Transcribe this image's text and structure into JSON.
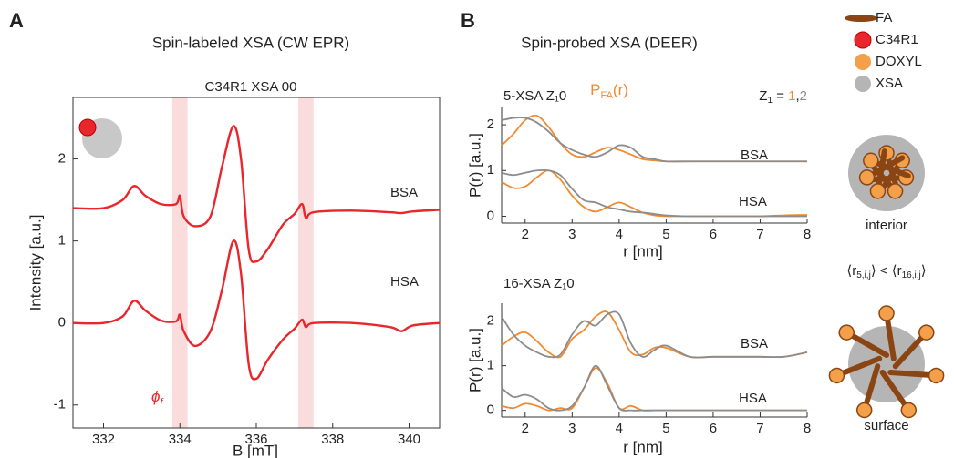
{
  "panel_a": {
    "letter": "A",
    "title": "Spin-labeled XSA (CW EPR)"
  },
  "panel_b": {
    "letter": "B",
    "title": "Spin-probed XSA (DEER)",
    "pfa": {
      "base": "P",
      "sub": "FA",
      "tail": "(r)",
      "color": "#f08a30"
    },
    "z1": {
      "base": "Z",
      "sub": "1",
      "eq": " = ",
      "one": "1",
      "comma": ",",
      "two": "2"
    },
    "legend": [
      {
        "label": "FA",
        "color": "#8b4513"
      },
      {
        "label": "C34R1",
        "color": "#e8262b"
      },
      {
        "label": "DOXYL",
        "color": "#f4a04a"
      },
      {
        "label": "XSA",
        "color": "#b5b5b5"
      }
    ],
    "interior": "interior",
    "surface": "surface",
    "comparison": [
      "⟨r",
      "5,i,j",
      "⟩ < ⟨r",
      "16,i,j",
      "⟩"
    ]
  },
  "chart_data": [
    {
      "type": "line",
      "title": "C34R1 XSA 00",
      "xlabel": "B [mT]",
      "ylabel": "Intensity [a.u.]",
      "xlim": [
        331.2,
        340.8
      ],
      "ylim": [
        -1.28,
        2.75
      ],
      "xticks": [
        332,
        334,
        336,
        338,
        340
      ],
      "yticks": [
        -1,
        0,
        1,
        2
      ],
      "bands": [
        [
          333.8,
          334.2
        ],
        [
          337.1,
          337.5
        ]
      ],
      "band_color": "#fbdcdc",
      "x": [
        331.2,
        332,
        332.5,
        332.8,
        333.1,
        333.5,
        333.9,
        334.0,
        334.1,
        334.4,
        334.8,
        335.1,
        335.4,
        335.6,
        335.8,
        336.0,
        336.3,
        336.7,
        337.0,
        337.2,
        337.3,
        337.5,
        338.5,
        339.5,
        339.8,
        340.1,
        340.8
      ],
      "series": [
        {
          "color": "#e8262b",
          "values": [
            1.4,
            1.4,
            1.5,
            1.67,
            1.55,
            1.45,
            1.45,
            1.55,
            1.3,
            1.18,
            1.3,
            1.9,
            2.4,
            2.0,
            0.9,
            0.75,
            0.9,
            1.2,
            1.33,
            1.45,
            1.28,
            1.35,
            1.37,
            1.35,
            1.34,
            1.36,
            1.38
          ]
        },
        {
          "color": "#e8262b",
          "values": [
            0,
            0,
            0.08,
            0.27,
            0.15,
            0.03,
            0.02,
            0.1,
            -0.1,
            -0.28,
            -0.1,
            0.4,
            1.0,
            0.6,
            -0.5,
            -0.68,
            -0.45,
            -0.2,
            -0.07,
            0.04,
            -0.05,
            0,
            0,
            -0.05,
            -0.1,
            -0.03,
            0
          ]
        }
      ],
      "annotations": [
        "BSA",
        "HSA"
      ],
      "phi": {
        "base": "ϕ",
        "sub": "f"
      }
    },
    {
      "type": "line",
      "title": "5-XSA Z₁0",
      "xlabel": "r [nm]",
      "ylabel": "P(r) [a.u.]",
      "xlim": [
        1.5,
        8
      ],
      "ylim": [
        -0.15,
        2.38
      ],
      "xticks": [
        2,
        3,
        4,
        5,
        6,
        7,
        8
      ],
      "yticks": [
        0,
        1,
        2
      ],
      "x": [
        1.5,
        1.75,
        2,
        2.25,
        2.5,
        2.75,
        3,
        3.25,
        3.5,
        3.75,
        4,
        4.25,
        4.5,
        4.75,
        5,
        5.5,
        6,
        6.5,
        7,
        7.5,
        8
      ],
      "series": [
        {
          "color": "#f08a30",
          "values": [
            1.55,
            1.8,
            2.1,
            2.2,
            1.95,
            1.6,
            1.35,
            1.3,
            1.4,
            1.5,
            1.45,
            1.35,
            1.25,
            1.22,
            1.2,
            1.2,
            1.2,
            1.2,
            1.2,
            1.2,
            1.2
          ]
        },
        {
          "color": "#8c8c8c",
          "values": [
            2.1,
            2.15,
            2.15,
            2.05,
            1.85,
            1.6,
            1.45,
            1.35,
            1.3,
            1.4,
            1.55,
            1.5,
            1.3,
            1.25,
            1.2,
            1.2,
            1.2,
            1.2,
            1.2,
            1.2,
            1.2
          ]
        },
        {
          "color": "#f08a30",
          "values": [
            0.75,
            0.62,
            0.65,
            0.85,
            1.0,
            0.8,
            0.45,
            0.2,
            0.1,
            0.2,
            0.3,
            0.2,
            0.08,
            0.02,
            0,
            0,
            0,
            0,
            0,
            0.02,
            0.03
          ]
        },
        {
          "color": "#8c8c8c",
          "values": [
            0.95,
            0.9,
            0.95,
            1.0,
            1.0,
            0.9,
            0.6,
            0.35,
            0.3,
            0.2,
            0.15,
            0.1,
            0.08,
            0.05,
            0.02,
            0,
            0,
            0,
            0,
            0,
            0
          ]
        }
      ],
      "annotations": [
        "BSA",
        "HSA"
      ]
    },
    {
      "type": "line",
      "title": "16-XSA Z₁0",
      "xlabel": "r [nm]",
      "ylabel": "P(r) [a.u.]",
      "xlim": [
        1.5,
        8
      ],
      "ylim": [
        -0.15,
        2.4
      ],
      "xticks": [
        2,
        3,
        4,
        5,
        6,
        7,
        8
      ],
      "yticks": [
        0,
        1,
        2
      ],
      "x": [
        1.5,
        1.75,
        2,
        2.25,
        2.5,
        2.75,
        3,
        3.25,
        3.5,
        3.75,
        4,
        4.25,
        4.5,
        4.75,
        5,
        5.5,
        6,
        6.5,
        7,
        7.5,
        8
      ],
      "series": [
        {
          "color": "#f08a30",
          "values": [
            1.45,
            1.65,
            1.75,
            1.55,
            1.3,
            1.2,
            1.6,
            1.8,
            2.1,
            2.2,
            1.8,
            1.3,
            1.25,
            1.4,
            1.4,
            1.2,
            1.2,
            1.2,
            1.2,
            1.2,
            1.3
          ]
        },
        {
          "color": "#8c8c8c",
          "values": [
            2.1,
            1.7,
            1.45,
            1.3,
            1.2,
            1.25,
            1.7,
            2.0,
            1.9,
            2.15,
            2.15,
            1.5,
            1.2,
            1.35,
            1.45,
            1.2,
            1.2,
            1.2,
            1.2,
            1.2,
            1.3
          ]
        },
        {
          "color": "#f08a30",
          "values": [
            0.1,
            0.05,
            0.15,
            0.1,
            0.0,
            0.05,
            0.05,
            0.5,
            0.95,
            0.6,
            0.05,
            0.1,
            0.0,
            0.0,
            0.0,
            0,
            0,
            0,
            0,
            0,
            0
          ]
        },
        {
          "color": "#8c8c8c",
          "values": [
            0.5,
            0.3,
            0.35,
            0.25,
            0.05,
            0.0,
            0.1,
            0.5,
            1.0,
            0.55,
            0.05,
            0.0,
            0.0,
            0.0,
            0.0,
            0,
            0,
            0,
            0,
            0,
            0
          ]
        }
      ],
      "annotations": [
        "BSA",
        "HSA"
      ]
    }
  ]
}
